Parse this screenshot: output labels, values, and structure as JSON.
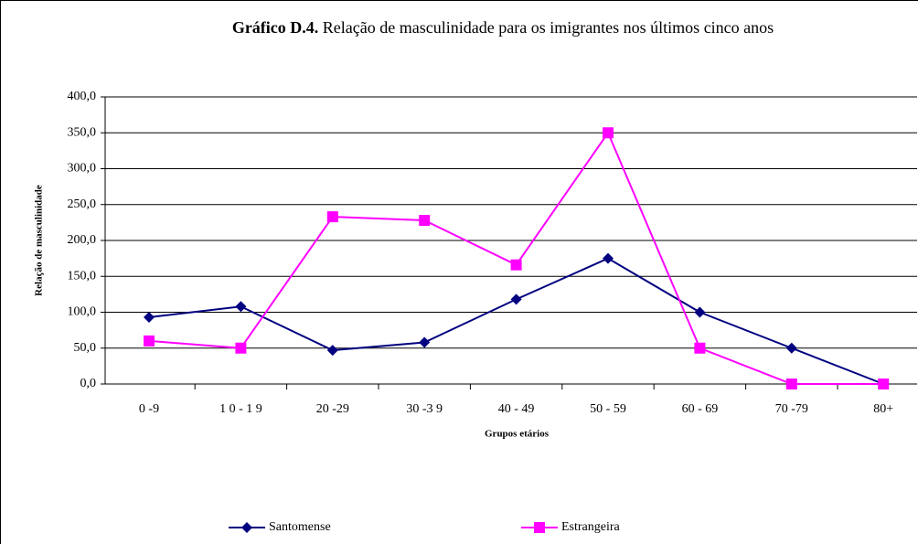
{
  "chart_data": {
    "type": "line",
    "title_number": "Gráfico D.4.",
    "title": "Relação de masculinidade para os imigrantes nos últimos cinco anos",
    "y_label": "Relação de masculinidade",
    "x_label": "Grupos etários",
    "categories": [
      "0 -9",
      "1 0 - 1 9",
      "20 -29",
      "30 -3 9",
      "40 - 49",
      "50 - 59",
      "60 - 69",
      "70 -79",
      "80+"
    ],
    "series": [
      {
        "name": "Santomense",
        "color": "#000080",
        "marker": "diamond",
        "values": [
          93,
          108,
          47,
          58,
          118,
          175,
          100,
          50,
          0
        ]
      },
      {
        "name": "Estrangeira",
        "color": "#ff00ff",
        "marker": "square",
        "values": [
          60,
          50,
          233,
          228,
          166,
          350,
          50,
          0,
          0
        ]
      }
    ],
    "ylim": [
      0,
      400
    ],
    "yticks": [
      {
        "value": 0,
        "label": "0,0"
      },
      {
        "value": 50,
        "label": "50,0"
      },
      {
        "value": 100,
        "label": "100,0"
      },
      {
        "value": 150,
        "label": "150,0"
      },
      {
        "value": 200,
        "label": "200,0"
      },
      {
        "value": 250,
        "label": "250,0"
      },
      {
        "value": 300,
        "label": "300,0"
      },
      {
        "value": 350,
        "label": "350,0"
      },
      {
        "value": 400,
        "label": "400,0"
      }
    ],
    "grid": true,
    "legend": "bottom"
  }
}
